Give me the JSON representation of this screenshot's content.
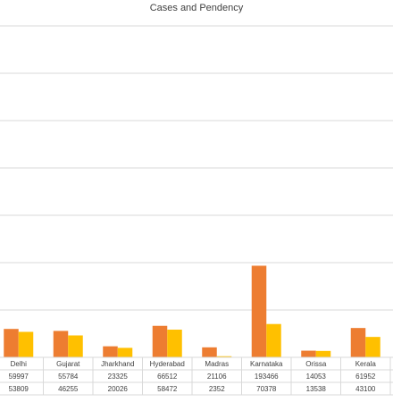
{
  "chart_data": {
    "type": "bar",
    "title": "Cases and Pendency",
    "categories": [
      "Delhi",
      "Gujarat",
      "Jharkhand",
      "Hyderabad",
      "Madras",
      "Karnataka",
      "Orissa",
      "Kerala"
    ],
    "series": [
      {
        "values": [
          59997,
          55784,
          23325,
          66512,
          21106,
          193466,
          14053,
          61952
        ],
        "color": "#ed7d31"
      },
      {
        "values": [
          53809,
          46255,
          20026,
          58472,
          2352,
          70378,
          13538,
          43100
        ],
        "color": "#ffc000"
      }
    ],
    "data_table": true,
    "grid": true,
    "ylim": [
      0,
      700000
    ]
  }
}
